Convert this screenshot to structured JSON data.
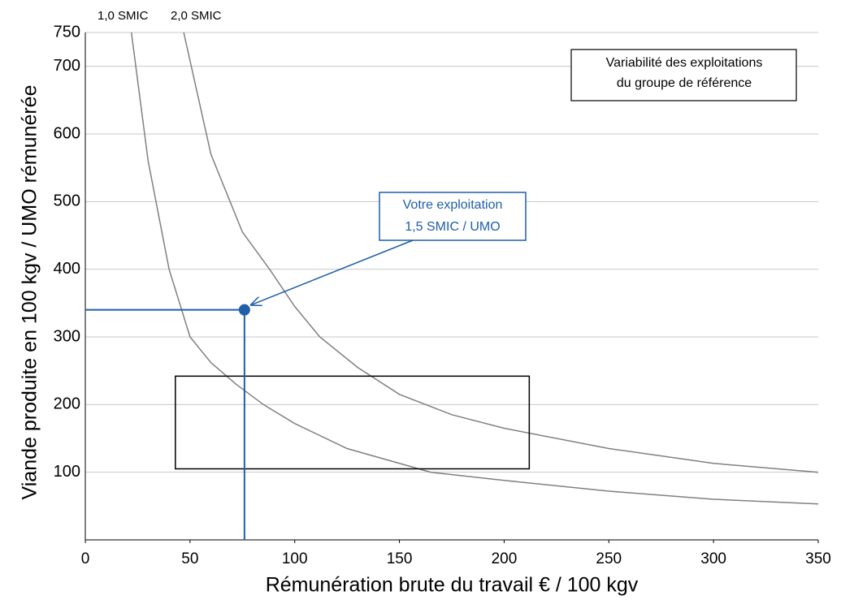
{
  "chart_data": {
    "type": "line",
    "x_label": "Rémunération brute du travail € / 100 kgv",
    "y_label": "Viande produite en 100 kgv / UMO rémunérée",
    "xlim": [
      0,
      350
    ],
    "xticks": [
      0,
      50,
      100,
      150,
      200,
      250,
      300,
      350
    ],
    "ylim": [
      0,
      750
    ],
    "yticks": [
      100,
      200,
      300,
      400,
      500,
      600,
      700,
      750
    ],
    "grid": true,
    "series": [
      {
        "name": "1,0 SMIC",
        "color": "#808080",
        "x": [
          22,
          30,
          40,
          50,
          60,
          72,
          85,
          100,
          125,
          165,
          200,
          250,
          300,
          350
        ],
        "values": [
          750,
          560,
          400,
          300,
          262,
          230,
          200,
          172,
          135,
          100,
          88,
          72,
          60,
          53
        ]
      },
      {
        "name": "2,0 SMIC",
        "color": "#808080",
        "x": [
          47,
          60,
          75,
          88,
          100,
          112,
          130,
          150,
          175,
          200,
          250,
          300,
          350
        ],
        "values": [
          750,
          570,
          455,
          400,
          345,
          300,
          255,
          215,
          185,
          165,
          135,
          113,
          100
        ]
      }
    ],
    "reference_box": {
      "label": "Variabilité des exploitations\ndu groupe de référence",
      "xlim": [
        43,
        212
      ],
      "ylim": [
        105,
        242
      ],
      "color": "#000000"
    },
    "your_farm": {
      "label": "Votre exploitation\n1,5 SMIC / UMO",
      "x": 76,
      "y": 340,
      "color": "#1f5fa8"
    }
  }
}
